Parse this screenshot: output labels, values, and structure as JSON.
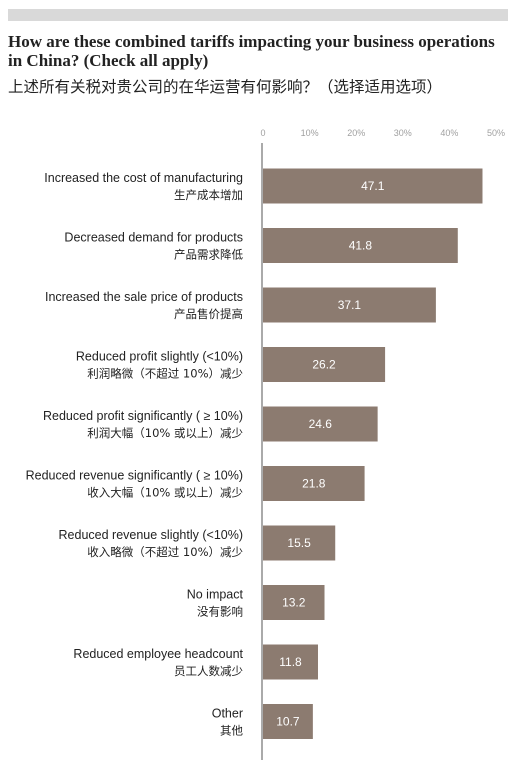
{
  "header": {
    "title_en": "How are these combined tariffs impacting your business operations in China? (Check all apply)",
    "title_zh": "上述所有关税对贵公司的在华运营有何影响？（选择适用选项）"
  },
  "chart_data": {
    "type": "bar",
    "orientation": "horizontal",
    "categories": [
      {
        "en": "Increased the cost of manufacturing",
        "zh": "生产成本增加"
      },
      {
        "en": "Decreased demand for products",
        "zh": "产品需求降低"
      },
      {
        "en": "Increased the sale price of products",
        "zh": "产品售价提高"
      },
      {
        "en": "Reduced profit slightly (<10%)",
        "zh": "利润略微（不超过 10%）减少"
      },
      {
        "en": "Reduced profit significantly ( ≥ 10%)",
        "zh": "利润大幅（10% 或以上）减少"
      },
      {
        "en": "Reduced revenue significantly ( ≥ 10%)",
        "zh": "收入大幅（10% 或以上）减少"
      },
      {
        "en": "Reduced revenue slightly (<10%)",
        "zh": "收入略微（不超过 10%）减少"
      },
      {
        "en": "No impact",
        "zh": "没有影响"
      },
      {
        "en": "Reduced employee headcount",
        "zh": "员工人数减少"
      },
      {
        "en": "Other",
        "zh": "其他"
      }
    ],
    "values": [
      47.1,
      41.8,
      37.1,
      26.2,
      24.6,
      21.8,
      15.5,
      13.2,
      11.8,
      10.7
    ],
    "value_labels": [
      "47.1",
      "41.8",
      "37.1",
      "26.2",
      "24.6",
      "21.8",
      "15.5",
      "13.2",
      "11.8",
      "10.7"
    ],
    "xticks": [
      0,
      10,
      20,
      30,
      40,
      50
    ],
    "xtick_labels": [
      "0",
      "10%",
      "20%",
      "30%",
      "40%",
      "50%"
    ],
    "xlim": [
      0,
      50
    ],
    "bar_color": "#8c7b70",
    "grid": false
  }
}
